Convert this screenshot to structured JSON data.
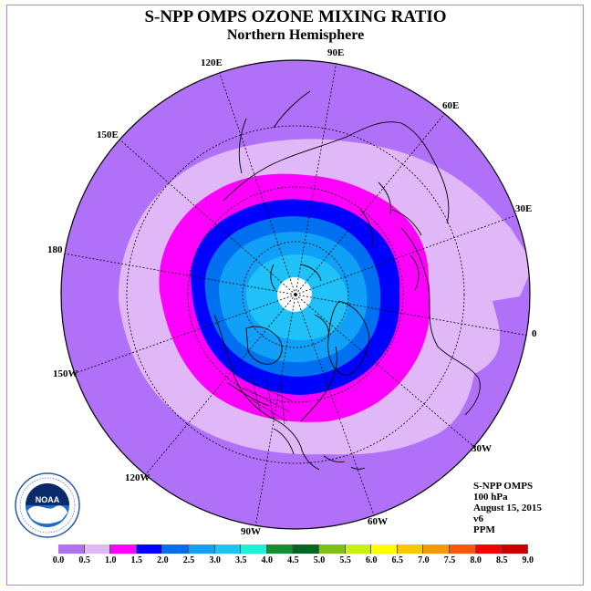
{
  "title": "S-NPP OMPS OZONE MIXING RATIO",
  "subtitle": "Northern Hemisphere",
  "longitude_labels": [
    {
      "id": "lon-90e",
      "text": "90E"
    },
    {
      "id": "lon-120e",
      "text": "120E"
    },
    {
      "id": "lon-60e",
      "text": "60E"
    },
    {
      "id": "lon-150e",
      "text": "150E"
    },
    {
      "id": "lon-30e",
      "text": "30E"
    },
    {
      "id": "lon-180",
      "text": "180"
    },
    {
      "id": "lon-0",
      "text": "0"
    },
    {
      "id": "lon-150w",
      "text": "150W"
    },
    {
      "id": "lon-30w",
      "text": "30W"
    },
    {
      "id": "lon-120w",
      "text": "120W"
    },
    {
      "id": "lon-60w",
      "text": "60W"
    },
    {
      "id": "lon-90w",
      "text": "90W"
    }
  ],
  "info": {
    "instrument": "S-NPP OMPS",
    "level": "100 hPa",
    "date": "August 15, 2015",
    "version": "v6",
    "units": "PPM"
  },
  "logo": {
    "text": "NOAA"
  },
  "colorbar": {
    "ticks": [
      "0.0",
      "0.5",
      "1.0",
      "1.5",
      "2.0",
      "2.5",
      "3.0",
      "3.5",
      "4.0",
      "4.5",
      "5.0",
      "5.5",
      "6.0",
      "6.5",
      "7.0",
      "7.5",
      "8.0",
      "8.5",
      "9.0"
    ],
    "colors": [
      "#b070f8",
      "#e0b8f8",
      "#ff00ff",
      "#0000ff",
      "#0070f0",
      "#10a0f8",
      "#20c0f8",
      "#20f0d8",
      "#109030",
      "#006820",
      "#80c010",
      "#c8f010",
      "#ffff00",
      "#f8c808",
      "#f89808",
      "#f85808",
      "#f80000",
      "#c80000",
      "#8b5a3a"
    ]
  },
  "map": {
    "projection": "north polar stereographic",
    "field": "ozone mixing ratio (ppm)",
    "levels_drawn": [
      "0.0-0.5",
      "0.5-1.0",
      "1.0-1.5",
      "1.5-2.0",
      "2.0-2.5",
      "2.5-3.0",
      "3.0-3.5"
    ],
    "missing_polar_cap_color": "#ffffff",
    "coastline_color": "#000000"
  }
}
